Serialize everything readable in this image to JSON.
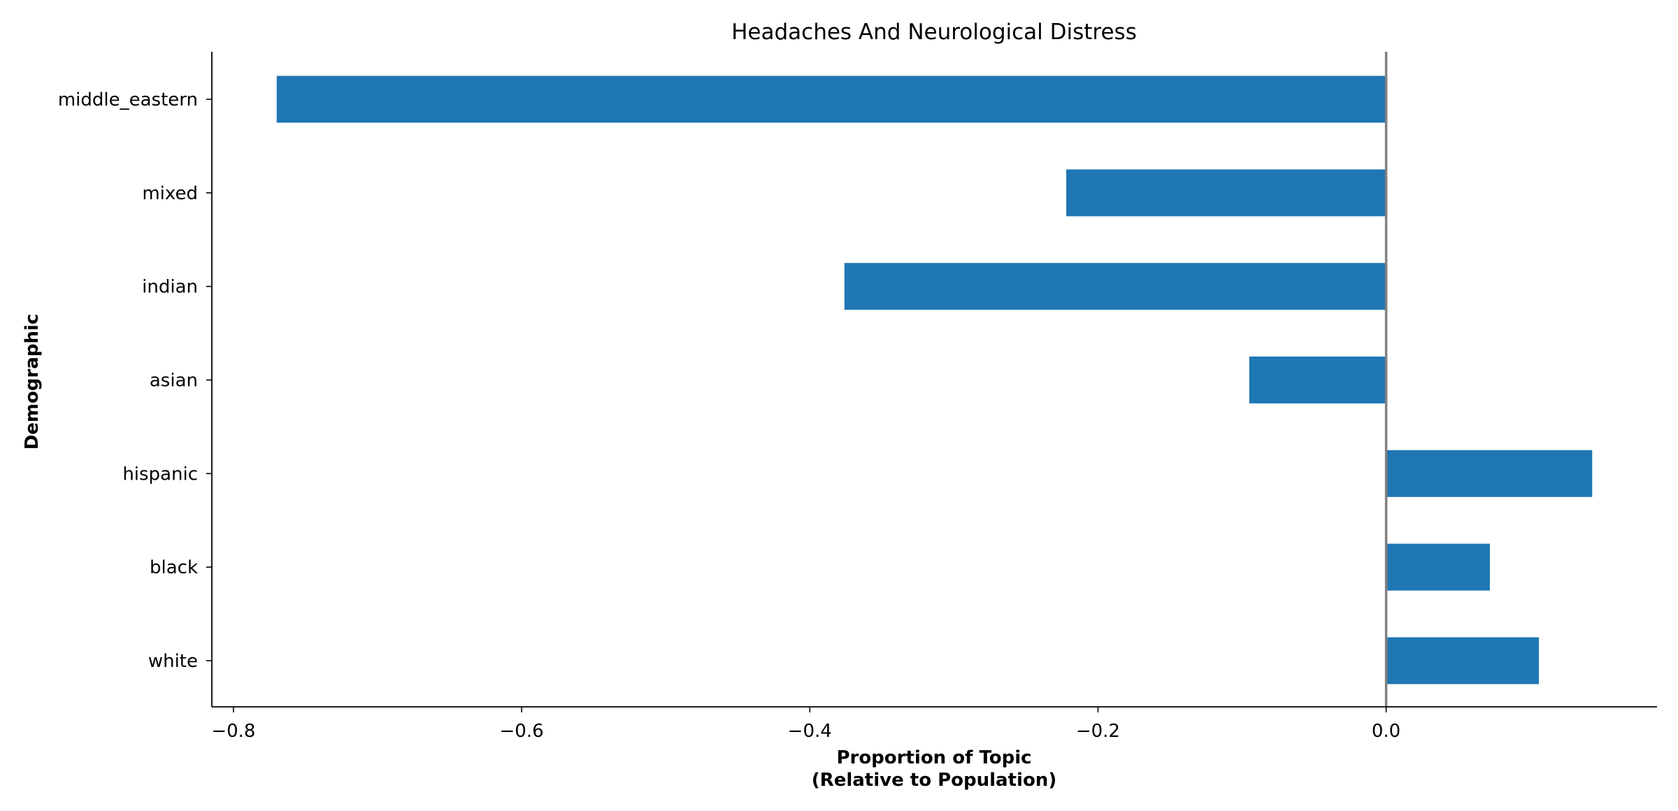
{
  "chart_data": {
    "type": "bar",
    "orientation": "horizontal",
    "title": "Headaches And Neurological Distress",
    "xlabel_lines": [
      "Proportion of Topic",
      "(Relative to Population)"
    ],
    "ylabel": "Demographic",
    "categories": [
      "middle_eastern",
      "mixed",
      "indian",
      "asian",
      "hispanic",
      "black",
      "white"
    ],
    "values": [
      -0.77,
      -0.222,
      -0.376,
      -0.095,
      0.143,
      0.072,
      0.106
    ],
    "xlim": [
      -0.815,
      0.188
    ],
    "xticks": [
      -0.8,
      -0.6,
      -0.4,
      -0.2,
      0.0
    ],
    "xtick_labels": [
      "−0.8",
      "−0.6",
      "−0.4",
      "−0.2",
      "0.0"
    ],
    "grid": false,
    "zero_line": true,
    "colors": {
      "bar": "#1f77b4",
      "zero_line": "#808080",
      "axis": "#000000"
    }
  }
}
